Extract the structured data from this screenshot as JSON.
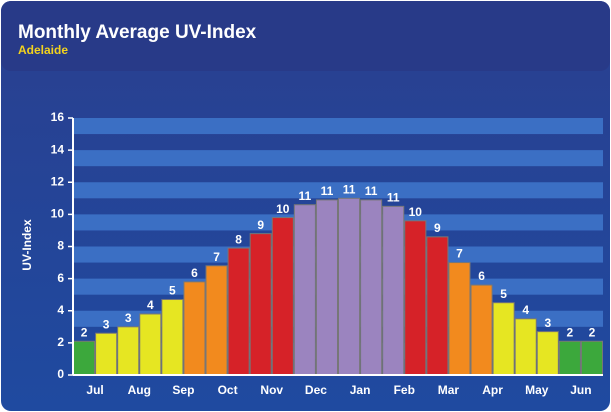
{
  "chart_data": {
    "type": "bar",
    "title": "Monthly Average UV-Index",
    "subtitle": "Adelaide",
    "y_label": "UV-Index",
    "categories": [
      "Jul",
      null,
      "Aug",
      null,
      "Sep",
      null,
      "Oct",
      null,
      "Nov",
      null,
      "Dec",
      null,
      "Jan",
      null,
      "Feb",
      null,
      "Mar",
      null,
      "Apr",
      null,
      "May",
      null,
      "Jun",
      null
    ],
    "values": [
      2.1,
      2.6,
      3.0,
      3.8,
      4.7,
      5.8,
      6.8,
      7.9,
      8.8,
      9.8,
      10.6,
      10.9,
      11.0,
      10.9,
      10.5,
      9.6,
      8.6,
      7.0,
      5.6,
      4.5,
      3.5,
      2.7,
      2.1,
      2.1
    ],
    "value_labels": [
      "2",
      "3",
      "3",
      "4",
      "5",
      "6",
      "7",
      "8",
      "9",
      "10",
      "11",
      "11",
      "11",
      "11",
      "11",
      "10",
      "9",
      "7",
      "6",
      "5",
      "4",
      "3",
      "2",
      "2"
    ],
    "colors": [
      "#3ca83c",
      "#e6e622",
      "#e6e622",
      "#e6e622",
      "#e6e622",
      "#f28a1e",
      "#f28a1e",
      "#d62228",
      "#d62228",
      "#d62228",
      "#9b84bf",
      "#9b84bf",
      "#9b84bf",
      "#9b84bf",
      "#9b84bf",
      "#d62228",
      "#d62228",
      "#f28a1e",
      "#f28a1e",
      "#e6e622",
      "#e6e622",
      "#e6e622",
      "#3ca83c",
      "#3ca83c"
    ],
    "ylim": [
      0,
      16
    ],
    "yticks": [
      0,
      2,
      4,
      6,
      8,
      10,
      12,
      14,
      16
    ],
    "grid": true
  }
}
